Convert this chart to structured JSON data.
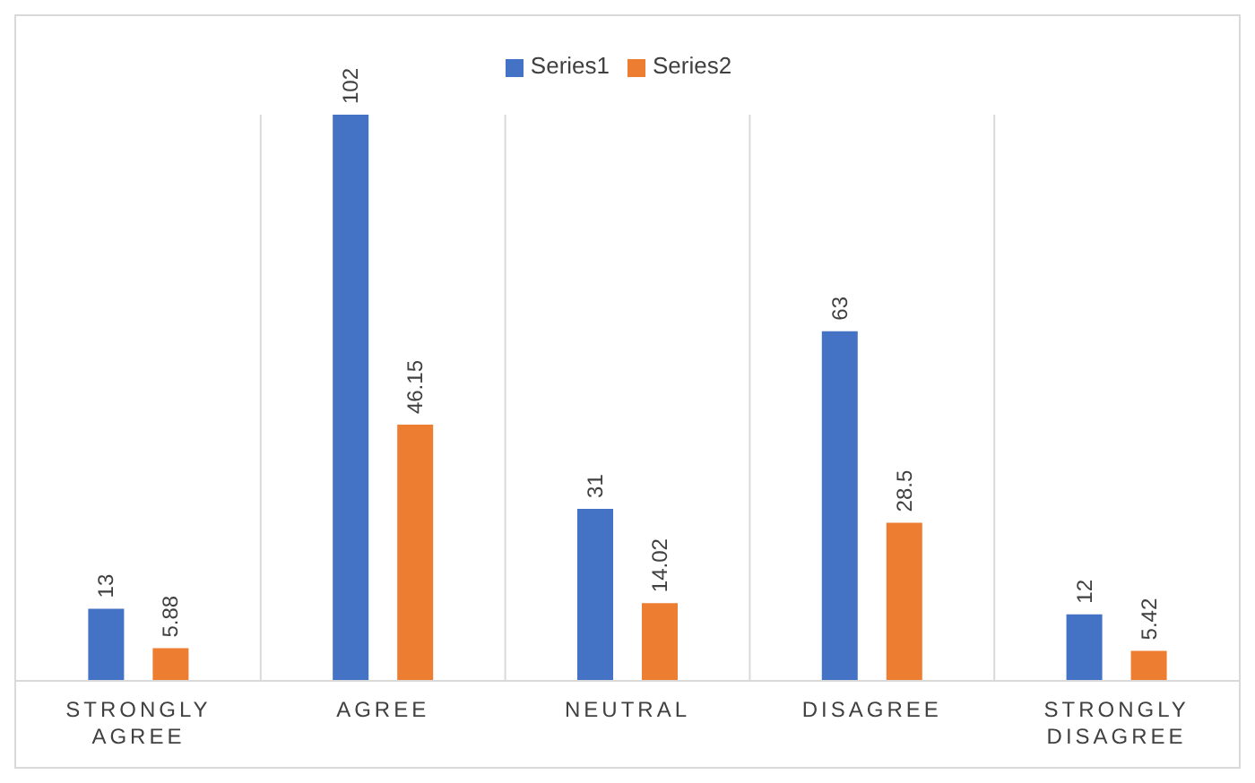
{
  "chart_data": {
    "type": "bar",
    "categories": [
      "STRONGLY AGREE",
      "AGREE",
      "NEUTRAL",
      "DISAGREE",
      "STRONGLY DISAGREE"
    ],
    "series": [
      {
        "name": "Series1",
        "color": "#4472c4",
        "values": [
          13,
          102,
          31,
          63,
          12
        ]
      },
      {
        "name": "Series2",
        "color": "#ed7d31",
        "values": [
          5.88,
          46.15,
          14.02,
          28.5,
          5.42
        ]
      }
    ],
    "data_labels": true,
    "grid": "x",
    "legend": "top"
  }
}
